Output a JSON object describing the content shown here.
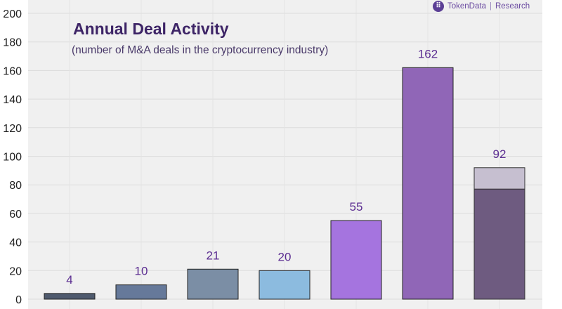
{
  "chart_data": {
    "type": "bar",
    "title": "Annual Deal Activity",
    "subtitle": "(number of M&A deals in the cryptocurrency industry)",
    "xlabel": "",
    "ylabel": "",
    "ylim": [
      0,
      200
    ],
    "yticks": [
      0,
      20,
      40,
      60,
      80,
      100,
      120,
      140,
      160,
      180,
      200
    ],
    "grid": true,
    "categories": [
      "",
      "",
      "",
      "",
      "",
      "",
      ""
    ],
    "values": [
      4,
      10,
      21,
      20,
      55,
      162,
      92
    ],
    "data_labels": [
      "4",
      "10",
      "21",
      "20",
      "55",
      "162",
      "92"
    ],
    "bar_colors": [
      "#4f5a6e",
      "#66799a",
      "#7b8ea5",
      "#8cbbdf",
      "#a574df",
      "#9066b7",
      "#6e5b80"
    ],
    "last_bar_split": {
      "lower_value": 77,
      "lower_color": "#6e5b80",
      "upper_color": "#c6bfd0"
    },
    "label_color": "#5b2d91"
  },
  "brand": {
    "logo_glyph": "⠿",
    "name": "TokenData",
    "separator": "|",
    "section": "Research"
  }
}
